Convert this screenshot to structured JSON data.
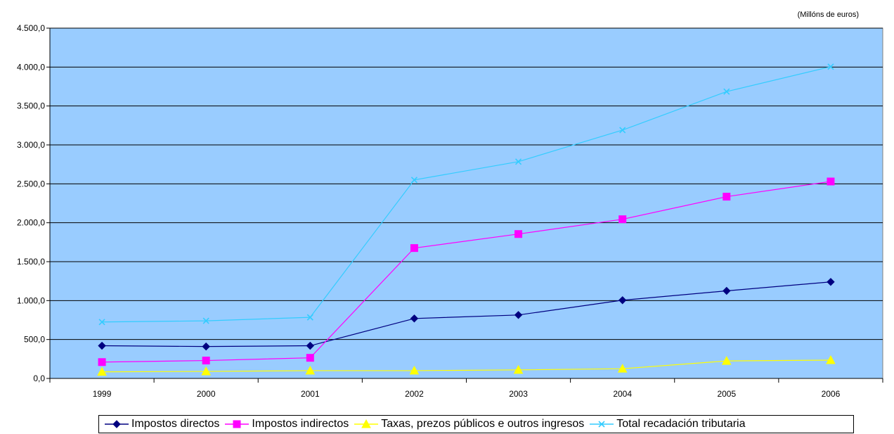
{
  "chart_data": {
    "type": "line",
    "unit_note": "(Millóns de euros)",
    "categories": [
      "1999",
      "2000",
      "2001",
      "2002",
      "2003",
      "2004",
      "2005",
      "2006"
    ],
    "ylim": [
      0,
      4500
    ],
    "y_ticks": [
      0,
      500,
      1000,
      1500,
      2000,
      2500,
      3000,
      3500,
      4000,
      4500
    ],
    "y_tick_labels": [
      "0,0",
      "500,0",
      "1.000,0",
      "1.500,0",
      "2.000,0",
      "2.500,0",
      "3.000,0",
      "3.500,0",
      "4.000,0",
      "4.500,0"
    ],
    "grid": "horizontal",
    "plot_background": "#99ccff",
    "legend_position": "bottom",
    "series": [
      {
        "name": "Impostos directos",
        "color": "#000080",
        "marker": "diamond",
        "values": [
          420,
          410,
          420,
          770,
          815,
          1005,
          1125,
          1240
        ]
      },
      {
        "name": "Impostos indirectos",
        "color": "#ff00ff",
        "marker": "square",
        "values": [
          210,
          230,
          265,
          1675,
          1855,
          2045,
          2335,
          2530
        ]
      },
      {
        "name": "Taxas, prezos públicos e outros ingresos",
        "color": "#ffff00",
        "marker": "triangle",
        "values": [
          85,
          90,
          100,
          100,
          110,
          125,
          225,
          235
        ]
      },
      {
        "name": "Total recadación tributaria",
        "color": "#33ccff",
        "marker": "x",
        "values": [
          725,
          740,
          785,
          2550,
          2785,
          3190,
          3685,
          4005
        ]
      }
    ]
  }
}
